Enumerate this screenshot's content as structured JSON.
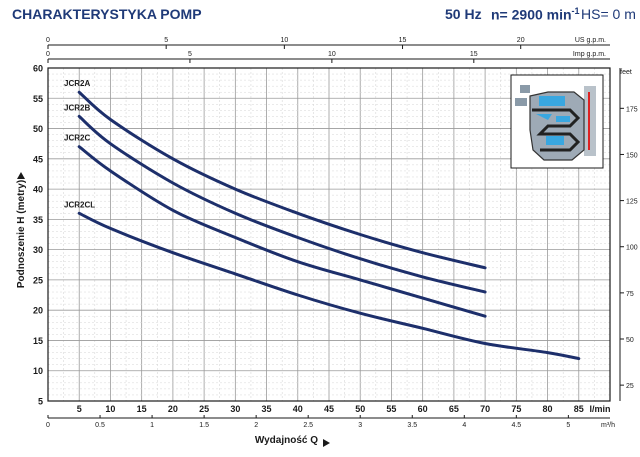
{
  "header": {
    "title": "CHARAKTERYSTYKA POMP",
    "frequency": "50 Hz",
    "speed_prefix": "n= 2900 min",
    "speed_exp": "-1",
    "hs": "HS= 0 m"
  },
  "chart_data": {
    "type": "line",
    "xlabel": "Wydajność Q",
    "ylabel": "Podnoszenie H (metry)",
    "x_unit": "l/min",
    "xlim": [
      0,
      90
    ],
    "ylim": [
      5,
      60
    ],
    "x_ticks": [
      5,
      10,
      15,
      20,
      25,
      30,
      35,
      40,
      45,
      50,
      55,
      60,
      65,
      70,
      75,
      80,
      85
    ],
    "y_ticks": [
      5,
      10,
      15,
      20,
      25,
      30,
      35,
      40,
      45,
      50,
      55,
      60
    ],
    "secondary_axes": {
      "us_gpm": {
        "label": "US g.p.m.",
        "ticks": [
          0,
          5,
          10,
          15,
          20
        ]
      },
      "imp_gpm": {
        "label": "Imp g.p.m.",
        "ticks": [
          0,
          5,
          10,
          15
        ]
      },
      "m3h": {
        "label": "m³/h",
        "ticks": [
          "0",
          "0.5",
          "1",
          "1.5",
          "2",
          "2.5",
          "3",
          "3.5",
          "4",
          "4.5",
          "5"
        ]
      },
      "feet": {
        "label": "feet",
        "ticks": [
          25,
          50,
          75,
          100,
          125,
          150,
          175
        ]
      }
    },
    "grid": true,
    "series": [
      {
        "name": "JCR2A",
        "x": [
          5,
          10,
          20,
          30,
          40,
          50,
          60,
          70
        ],
        "y": [
          56,
          51.5,
          45,
          40,
          36,
          32.5,
          29.5,
          27
        ]
      },
      {
        "name": "JCR2B",
        "x": [
          5,
          10,
          20,
          30,
          40,
          50,
          60,
          70
        ],
        "y": [
          52,
          47.5,
          41,
          36,
          32,
          28.5,
          25.5,
          23
        ]
      },
      {
        "name": "JCR2C",
        "x": [
          5,
          10,
          20,
          30,
          40,
          50,
          60,
          70
        ],
        "y": [
          47,
          43,
          36.5,
          32,
          28,
          25,
          22,
          19
        ]
      },
      {
        "name": "JCR2CL",
        "x": [
          5,
          10,
          20,
          30,
          40,
          50,
          60,
          70,
          80,
          85
        ],
        "y": [
          36,
          33.5,
          29.5,
          26,
          22.5,
          19.5,
          17,
          14.5,
          13,
          12
        ]
      }
    ]
  }
}
